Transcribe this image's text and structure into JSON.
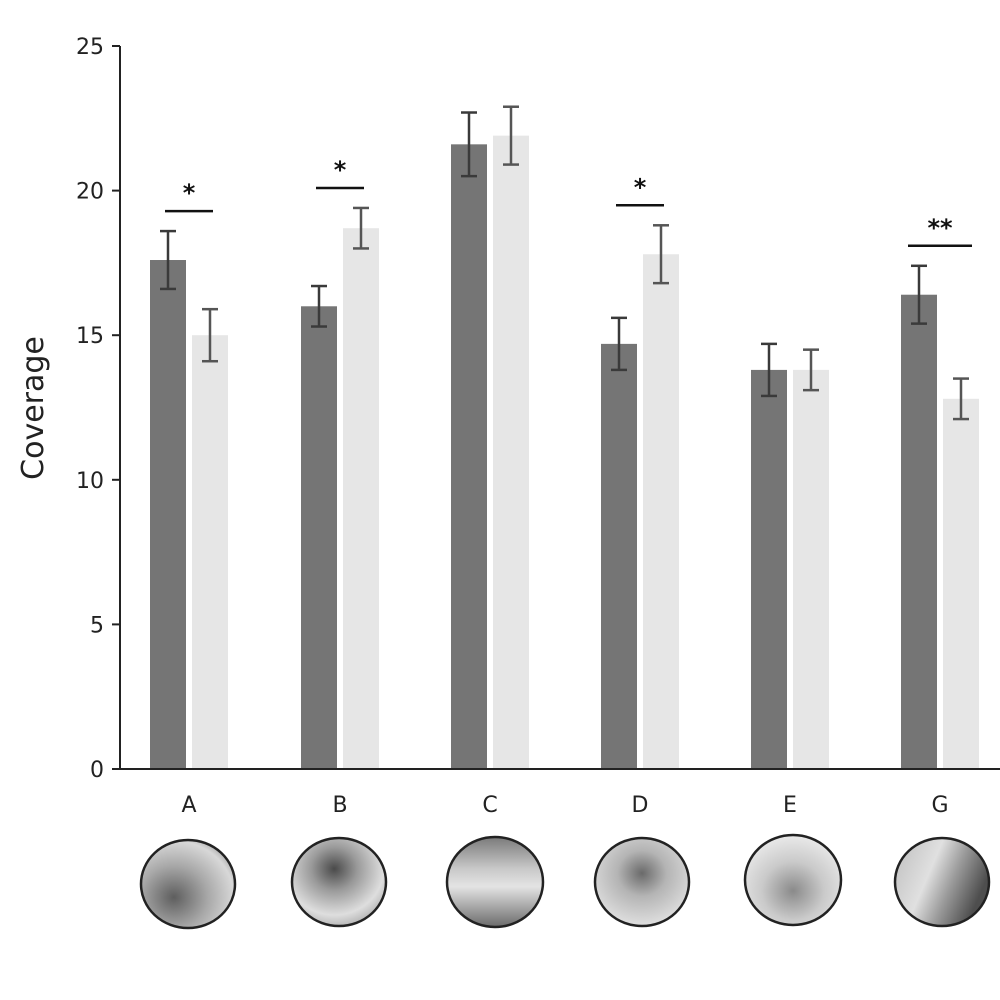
{
  "chart_data": {
    "type": "bar",
    "ylabel": "Coverage",
    "ylim": [
      0,
      25
    ],
    "yticks": [
      0,
      5,
      10,
      15,
      20,
      25
    ],
    "categories": [
      "A",
      "B",
      "C",
      "D",
      "E",
      "G"
    ],
    "series": [
      {
        "values": [
          17.6,
          16.0,
          21.6,
          14.7,
          13.8,
          16.4
        ],
        "errors": [
          1.0,
          0.7,
          1.1,
          0.9,
          0.9,
          1.0
        ],
        "color": "#757575"
      },
      {
        "values": [
          15.0,
          18.7,
          21.9,
          17.8,
          13.8,
          12.8
        ],
        "errors": [
          0.9,
          0.7,
          1.0,
          1.0,
          0.7,
          0.7
        ],
        "color": "#e6e6e6"
      }
    ],
    "significance": [
      {
        "category": "A",
        "label": "*"
      },
      {
        "category": "B",
        "label": "*"
      },
      {
        "category": "D",
        "label": "*"
      },
      {
        "category": "G",
        "label": "**"
      }
    ],
    "grid": false,
    "legend": "none"
  },
  "thumbnails": {
    "description_icons": [
      "heatmap-disc-icon",
      "heatmap-disc-icon",
      "heatmap-disc-icon",
      "heatmap-disc-icon",
      "heatmap-disc-icon",
      "heatmap-disc-icon"
    ]
  }
}
